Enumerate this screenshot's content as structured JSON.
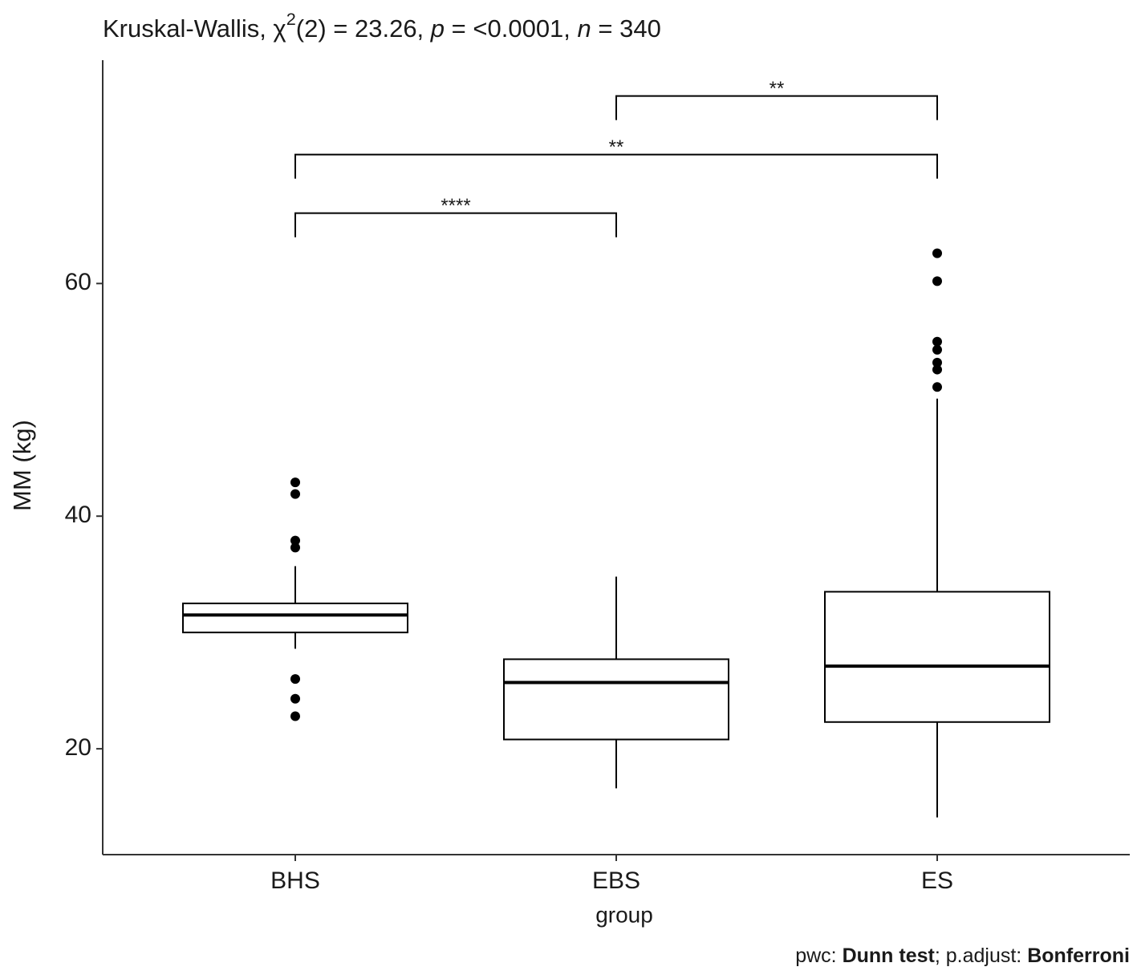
{
  "chart_data": {
    "type": "boxplot",
    "title_parts": [
      {
        "text": "Kruskal-Wallis, χ",
        "style": "normal"
      },
      {
        "text": "2",
        "style": "sup"
      },
      {
        "text": "(2) = 23.26, ",
        "style": "normal"
      },
      {
        "text": "p",
        "style": "italic"
      },
      {
        "text": " = <0.0001, ",
        "style": "normal"
      },
      {
        "text": "n",
        "style": "italic"
      },
      {
        "text": " = 340",
        "style": "normal"
      }
    ],
    "caption_parts": [
      {
        "text": "pwc: ",
        "style": "normal"
      },
      {
        "text": "Dunn test",
        "style": "bold"
      },
      {
        "text": "; p.adjust: ",
        "style": "normal"
      },
      {
        "text": "Bonferroni",
        "style": "bold"
      }
    ],
    "x_label": "group",
    "y_label": "MM (kg)",
    "categories": [
      "BHS",
      "EBS",
      "ES"
    ],
    "boxes": [
      {
        "whisker_low": 28.6,
        "q1": 30.0,
        "median": 31.5,
        "q3": 32.5,
        "whisker_high": 35.7,
        "outliers": [
          42.9,
          41.9,
          37.9,
          37.3,
          26.0,
          24.3,
          22.8
        ]
      },
      {
        "whisker_low": 16.6,
        "q1": 20.8,
        "median": 25.7,
        "q3": 27.7,
        "whisker_high": 34.8,
        "outliers": []
      },
      {
        "whisker_low": 14.1,
        "q1": 22.3,
        "median": 27.1,
        "q3": 33.5,
        "whisker_high": 50.1,
        "outliers": [
          62.6,
          60.2,
          55.0,
          54.3,
          53.2,
          52.6,
          51.1
        ]
      }
    ],
    "comparisons": [
      {
        "from": 0,
        "to": 1,
        "label": "****"
      },
      {
        "from": 0,
        "to": 2,
        "label": "**"
      },
      {
        "from": 1,
        "to": 2,
        "label": "**"
      }
    ],
    "ylim": [
      10.9,
      79.2
    ],
    "yticks": [
      20,
      40,
      60
    ],
    "color": "#000000",
    "fill": "#ffffff"
  }
}
